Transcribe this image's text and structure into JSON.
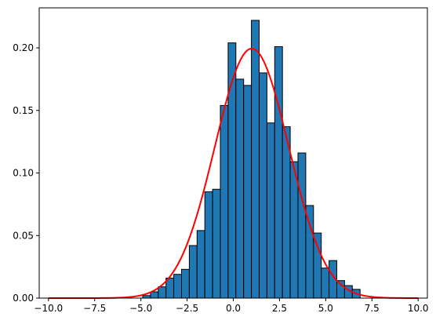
{
  "chart_data": {
    "type": "bar",
    "title": "",
    "xlabel": "",
    "ylabel": "",
    "xlim": [
      -10.5,
      10.5
    ],
    "ylim": [
      0,
      0.232
    ],
    "grid": false,
    "legend": "none",
    "xticks": [
      -10.0,
      -7.5,
      -5.0,
      -2.5,
      0.0,
      2.5,
      5.0,
      7.5,
      10.0
    ],
    "xtick_labels": [
      "−10.0",
      "−7.5",
      "−5.0",
      "−2.5",
      "0.0",
      "2.5",
      "5.0",
      "7.5",
      "10.0"
    ],
    "yticks": [
      0.0,
      0.05,
      0.1,
      0.15,
      0.2
    ],
    "ytick_labels": [
      "0.00",
      "0.05",
      "0.10",
      "0.15",
      "0.20"
    ],
    "histogram": {
      "bin_width": 0.42,
      "bin_left_edges": [
        -4.9,
        -4.48,
        -4.06,
        -3.64,
        -3.22,
        -2.8,
        -2.38,
        -1.96,
        -1.54,
        -1.12,
        -0.7,
        -0.28,
        0.14,
        0.56,
        0.98,
        1.4,
        1.82,
        2.24,
        2.66,
        3.08,
        3.5,
        3.92,
        4.34,
        4.76,
        5.18,
        5.6,
        6.02,
        6.44
      ],
      "values": [
        0.002,
        0.005,
        0.009,
        0.016,
        0.019,
        0.023,
        0.042,
        0.054,
        0.085,
        0.087,
        0.154,
        0.204,
        0.175,
        0.17,
        0.222,
        0.18,
        0.14,
        0.201,
        0.137,
        0.109,
        0.116,
        0.074,
        0.052,
        0.024,
        0.03,
        0.014,
        0.01,
        0.007
      ]
    },
    "curve": {
      "type": "normal-pdf",
      "mean": 1.0,
      "std": 2.0,
      "x_range": [
        -10.0,
        10.0
      ]
    },
    "colors": {
      "bar_fill": "#1f77b4",
      "bar_edge": "#000000",
      "curve": "#ff0000",
      "axes": "#000000"
    }
  }
}
